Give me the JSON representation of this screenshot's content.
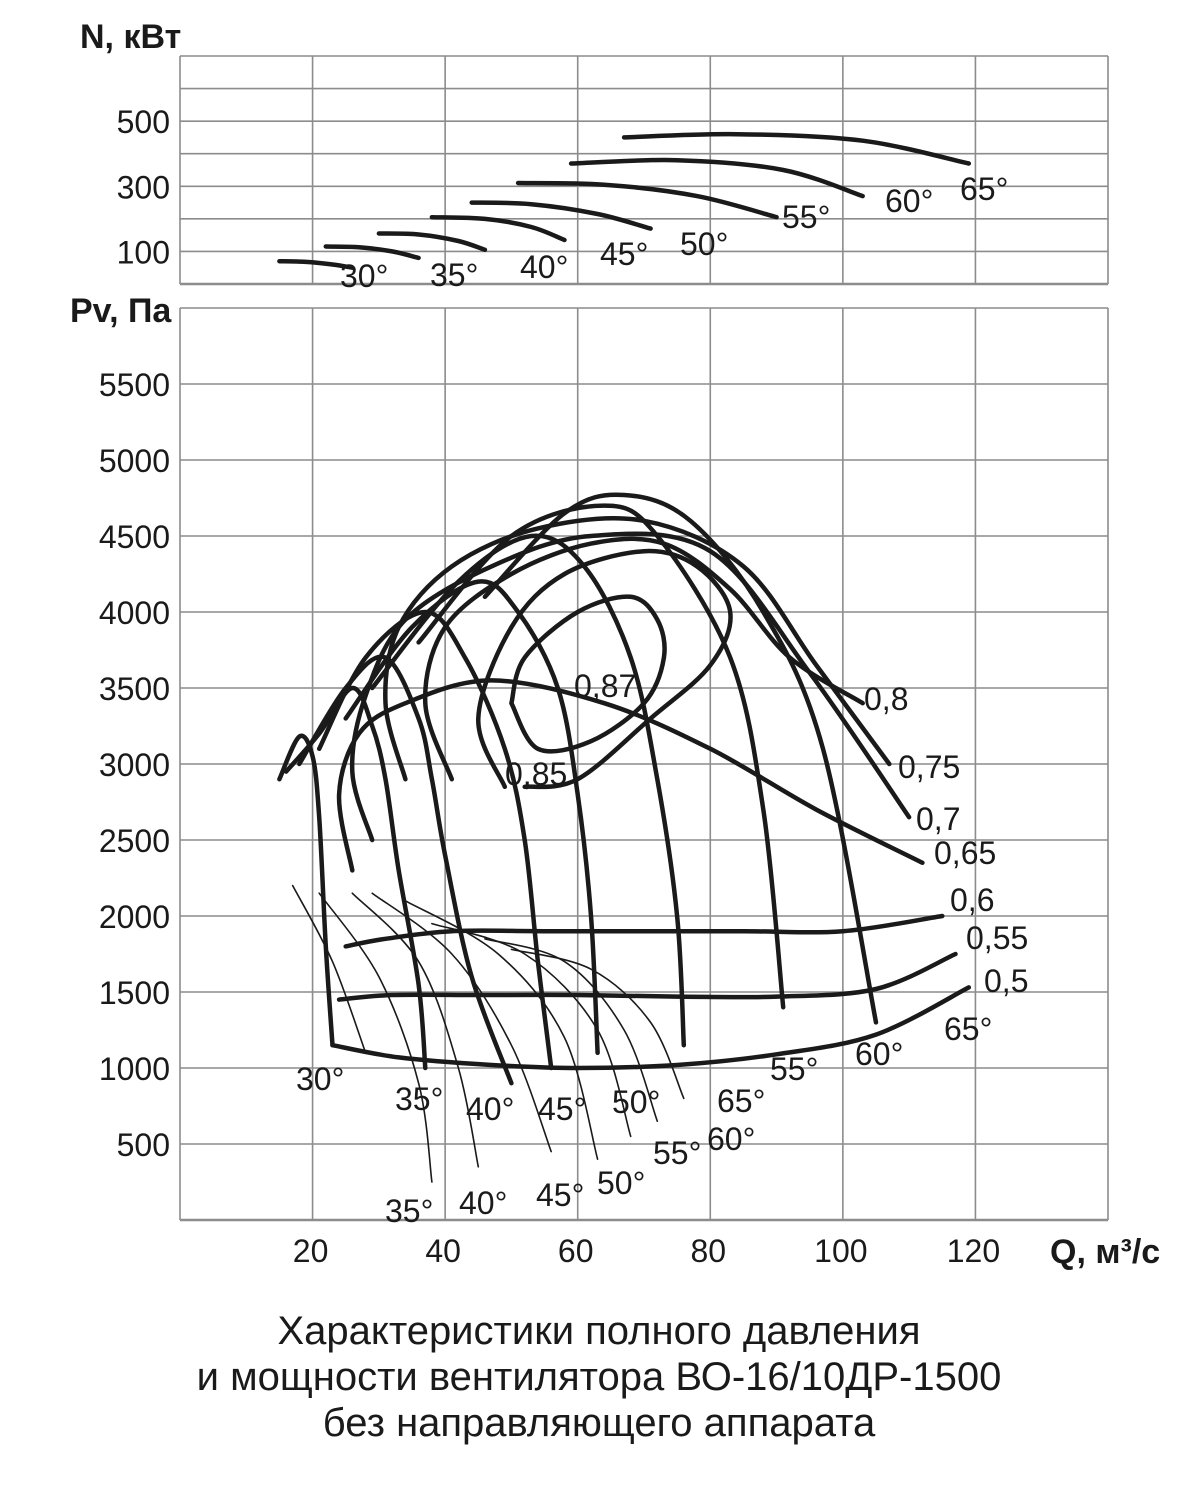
{
  "caption": {
    "line1": "Характеристики полного давления",
    "line2": "и мощности вентилятора ВО-16/10ДР-1500",
    "line3": "без направляющего аппарата"
  },
  "colors": {
    "curve": "#1a1a1a",
    "grid": "#8c8c8c"
  },
  "chart_data": [
    {
      "type": "line",
      "ylabel": "N, кВт",
      "yticks": [
        100,
        300,
        500
      ],
      "ylim": [
        0,
        700
      ],
      "xlim": [
        0,
        140
      ],
      "grid": true,
      "series": [
        {
          "name": "30°",
          "x": [
            15,
            19,
            23,
            26
          ],
          "y": [
            70,
            68,
            60,
            50
          ]
        },
        {
          "name": "35°",
          "x": [
            22,
            27,
            32,
            36
          ],
          "y": [
            115,
            113,
            100,
            80
          ]
        },
        {
          "name": "40°",
          "x": [
            30,
            36,
            42,
            46
          ],
          "y": [
            155,
            152,
            132,
            105
          ]
        },
        {
          "name": "45°",
          "x": [
            38,
            46,
            53,
            58
          ],
          "y": [
            205,
            200,
            175,
            135
          ]
        },
        {
          "name": "50°",
          "x": [
            44,
            53,
            63,
            71
          ],
          "y": [
            250,
            245,
            215,
            170
          ]
        },
        {
          "name": "55°",
          "x": [
            51,
            64,
            78,
            90
          ],
          "y": [
            310,
            305,
            270,
            205
          ]
        },
        {
          "name": "60°",
          "x": [
            59,
            75,
            91,
            103
          ],
          "y": [
            370,
            380,
            350,
            270
          ]
        },
        {
          "name": "65°",
          "x": [
            67,
            84,
            103,
            119
          ],
          "y": [
            450,
            460,
            440,
            370
          ]
        }
      ],
      "labels": [
        "30°",
        "35°",
        "40°",
        "45°",
        "50°",
        "55°",
        "60°",
        "65°"
      ]
    },
    {
      "type": "line",
      "ylabel": "Pv, Па",
      "xlabel": "Q, м³/с",
      "xticks": [
        20,
        40,
        60,
        80,
        100,
        120
      ],
      "yticks": [
        500,
        1000,
        1500,
        2000,
        2500,
        3000,
        3500,
        4000,
        4500,
        5000,
        5500
      ],
      "ylim": [
        0,
        6000
      ],
      "xlim": [
        0,
        140
      ],
      "grid": true,
      "pressure_curves": [
        {
          "name": "30°",
          "x": [
            15,
            18,
            20,
            21,
            22,
            23
          ],
          "y": [
            2900,
            3180,
            3050,
            2650,
            1800,
            1150
          ]
        },
        {
          "name": "35°",
          "x": [
            16,
            21,
            26,
            29,
            31,
            33,
            36,
            37
          ],
          "y": [
            2950,
            3200,
            3500,
            3250,
            2900,
            2300,
            1550,
            1000
          ]
        },
        {
          "name": "40°",
          "x": [
            18,
            25,
            31,
            36,
            38,
            40,
            44,
            50
          ],
          "y": [
            3000,
            3500,
            3700,
            3300,
            2900,
            2400,
            1600,
            900
          ]
        },
        {
          "name": "45°",
          "x": [
            21,
            28,
            37,
            43,
            49,
            52,
            54,
            56
          ],
          "y": [
            3100,
            3700,
            4000,
            3700,
            3100,
            2500,
            1700,
            1000
          ]
        },
        {
          "name": "50°",
          "x": [
            25,
            35,
            45,
            51,
            57,
            60,
            62,
            63
          ],
          "y": [
            3300,
            3900,
            4200,
            4000,
            3500,
            2800,
            2000,
            1100
          ]
        },
        {
          "name": "55°",
          "x": [
            29,
            42,
            53,
            61,
            68,
            72,
            75,
            76
          ],
          "y": [
            3500,
            4200,
            4500,
            4300,
            3700,
            2900,
            2000,
            1150
          ]
        },
        {
          "name": "60°",
          "x": [
            36,
            50,
            64,
            72,
            83,
            88,
            91
          ],
          "y": [
            3800,
            4500,
            4700,
            4500,
            3700,
            2700,
            1400
          ]
        },
        {
          "name": "65°",
          "x": [
            46,
            58,
            67,
            77,
            88,
            97,
            105
          ],
          "y": [
            4100,
            4650,
            4770,
            4600,
            4000,
            3100,
            1300
          ]
        }
      ],
      "efficiency_contours": [
        {
          "name": "0,87",
          "x": [
            50,
            52,
            60,
            68,
            72,
            73,
            70,
            62,
            54,
            50
          ],
          "y": [
            3400,
            3700,
            4000,
            4100,
            3950,
            3700,
            3400,
            3150,
            3100,
            3400
          ]
        },
        {
          "name": "0,85",
          "x": [
            49,
            45,
            50,
            58,
            70,
            78,
            83,
            80,
            71,
            60,
            52
          ],
          "y": [
            2850,
            3300,
            3900,
            4250,
            4400,
            4300,
            4000,
            3650,
            3300,
            2900,
            2850
          ]
        },
        {
          "name": "0,8",
          "x": [
            41,
            37,
            40,
            50,
            62,
            73,
            83,
            92,
            103
          ],
          "y": [
            2900,
            3400,
            3900,
            4250,
            4450,
            4450,
            4150,
            3700,
            3400
          ]
        },
        {
          "name": "0,75",
          "x": [
            34,
            31,
            33,
            41,
            54,
            70,
            85,
            96,
            107
          ],
          "y": [
            2900,
            3400,
            3900,
            4300,
            4550,
            4600,
            4300,
            3650,
            3000
          ]
        },
        {
          "name": "0,7",
          "x": [
            29,
            26,
            28,
            34,
            47,
            62,
            80,
            95,
            110
          ],
          "y": [
            2500,
            2950,
            3450,
            3950,
            4300,
            4500,
            4400,
            3600,
            2650
          ]
        },
        {
          "name": "0,65",
          "x": [
            26,
            24,
            27,
            34,
            47,
            64,
            80,
            96,
            112
          ],
          "y": [
            2300,
            2800,
            3200,
            3400,
            3550,
            3400,
            3100,
            2700,
            2350
          ]
        },
        {
          "name": "0,6",
          "x": [
            25,
            31,
            41,
            55,
            70,
            85,
            100,
            115
          ],
          "y": [
            1800,
            1850,
            1900,
            1900,
            1900,
            1900,
            1900,
            2000
          ]
        },
        {
          "name": "0,55",
          "x": [
            24,
            32,
            45,
            60,
            75,
            90,
            105,
            117
          ],
          "y": [
            1450,
            1480,
            1480,
            1480,
            1470,
            1470,
            1520,
            1750
          ]
        },
        {
          "name": "0,5",
          "x": [
            23,
            33,
            47,
            60,
            75,
            90,
            105,
            119
          ],
          "y": [
            1150,
            1070,
            1020,
            1000,
            1020,
            1090,
            1220,
            1530
          ]
        }
      ],
      "power_angle_lines": [
        {
          "name": "30°",
          "x": [
            17,
            23,
            28
          ],
          "y": [
            2200,
            1700,
            1100
          ]
        },
        {
          "name": "35°",
          "x": [
            21,
            30,
            36,
            38
          ],
          "y": [
            2150,
            1600,
            900,
            250
          ]
        },
        {
          "name": "40°",
          "x": [
            26,
            36,
            42,
            45
          ],
          "y": [
            2150,
            1700,
            1000,
            350
          ]
        },
        {
          "name": "45°",
          "x": [
            29,
            41,
            50,
            56
          ],
          "y": [
            2150,
            1750,
            1150,
            450
          ]
        },
        {
          "name": "50°",
          "x": [
            34,
            48,
            58,
            63
          ],
          "y": [
            2100,
            1750,
            1200,
            400
          ]
        },
        {
          "name": "55°",
          "x": [
            38,
            52,
            63,
            68
          ],
          "y": [
            1950,
            1750,
            1250,
            550
          ]
        },
        {
          "name": "60°",
          "x": [
            46,
            58,
            67,
            72
          ],
          "y": [
            1850,
            1700,
            1250,
            650
          ]
        },
        {
          "name": "65°",
          "x": [
            50,
            62,
            71,
            76
          ],
          "y": [
            1780,
            1650,
            1300,
            800
          ]
        }
      ],
      "labels": {
        "efficiency": [
          "0,87",
          "0,85",
          "0,8",
          "0,75",
          "0,7",
          "0,65",
          "0,6",
          "0,55",
          "0,5"
        ],
        "pressure_angles": [
          "30°",
          "35°",
          "40°",
          "45°",
          "50°",
          "55°",
          "60°",
          "65°"
        ],
        "power_angles": [
          "35°",
          "40°",
          "45°",
          "50°",
          "55°",
          "60°",
          "65°"
        ]
      }
    }
  ]
}
